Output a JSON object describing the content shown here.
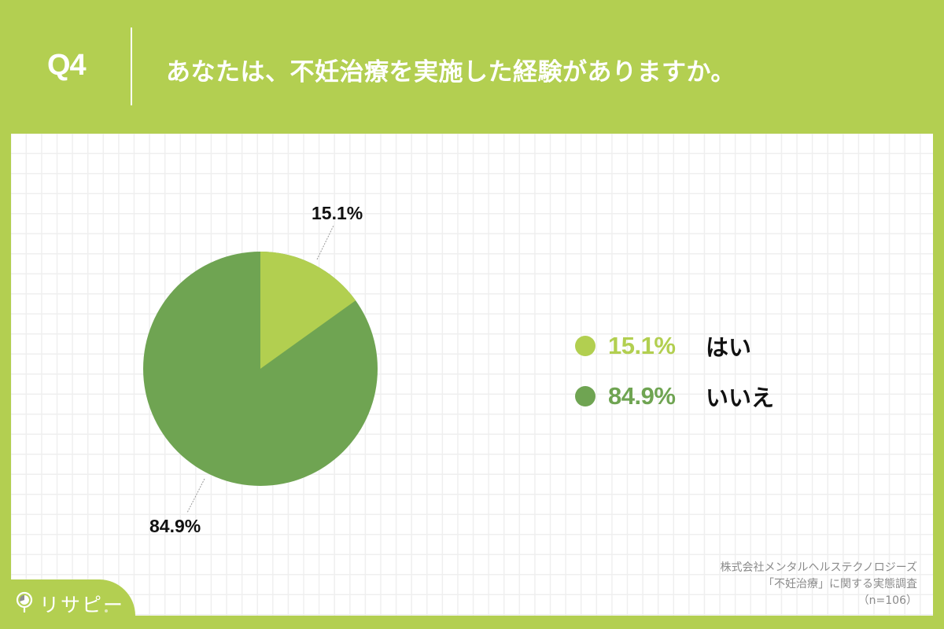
{
  "header": {
    "question_number": "Q4",
    "title": "あなたは、不妊治療を実施した経験がありますか。"
  },
  "colors": {
    "background": "#B3CF51",
    "yes": "#B2CF50",
    "no": "#6FA452"
  },
  "chart_data": {
    "type": "pie",
    "title": "あなたは、不妊治療を実施した経験がありますか。",
    "categories": [
      "はい",
      "いいえ"
    ],
    "values": [
      15.1,
      84.9
    ],
    "unit": "%",
    "colors": [
      "#B2CF50",
      "#6FA452"
    ],
    "data_labels": [
      "15.1%",
      "84.9%"
    ],
    "start_angle": "12 o'clock, clockwise",
    "legend_position": "right",
    "sample_size": "n=106"
  },
  "pie": {
    "labels": {
      "yes": "15.1%",
      "no": "84.9%"
    }
  },
  "legend": {
    "items": [
      {
        "pct": "15.1%",
        "label": "はい"
      },
      {
        "pct": "84.9%",
        "label": "いいえ"
      }
    ]
  },
  "source": {
    "line1": "株式会社メンタルヘルステクノロジーズ",
    "line2": "「不妊治療」に関する実態調査",
    "line3": "（n=106）"
  },
  "logo": {
    "text": "リサピー"
  }
}
